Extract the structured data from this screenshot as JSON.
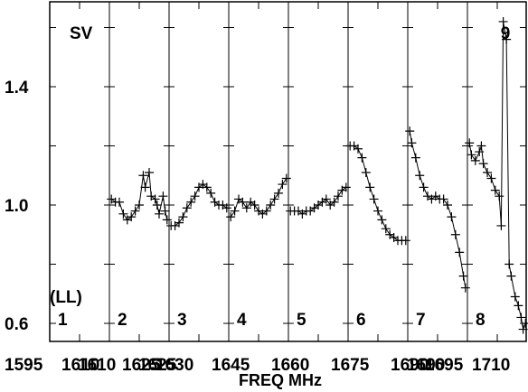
{
  "chart_data": {
    "type": "line",
    "title": "",
    "corner_label": "SV",
    "polarization_label": "(LL)",
    "xlabel": "FREQ MHz",
    "ylabel": "",
    "ylim": [
      0.55,
      1.62
    ],
    "y_ticks": [
      0.6,
      1.0,
      1.4
    ],
    "y_tick_labels": [
      "0.6",
      "1.0",
      "1.4"
    ],
    "x_tick_labels": [
      "1595",
      "1610",
      "1610",
      "1625",
      "1625",
      "1630",
      "1645",
      "1660",
      "1675",
      "1690",
      "1690",
      "1695",
      "1710"
    ],
    "panels": [
      {
        "label": "1",
        "x_start": 1595,
        "x_end": 1610,
        "points": []
      },
      {
        "label": "2",
        "x_start": 1610,
        "x_end": 1625,
        "points": [
          [
            1610.5,
            1.02
          ],
          [
            1611.5,
            1.01
          ],
          [
            1612.5,
            1.01
          ],
          [
            1613.5,
            0.97
          ],
          [
            1614.5,
            0.95
          ],
          [
            1615.5,
            0.96
          ],
          [
            1616.5,
            0.98
          ],
          [
            1617.5,
            1.0
          ],
          [
            1618.5,
            1.1
          ],
          [
            1619,
            1.06
          ],
          [
            1620,
            1.11
          ],
          [
            1620.5,
            1.03
          ],
          [
            1621.5,
            1.02
          ],
          [
            1622,
            1.0
          ],
          [
            1622.5,
            0.97
          ],
          [
            1623.5,
            1.03
          ],
          [
            1624,
            0.98
          ],
          [
            1624.5,
            0.95
          ]
        ]
      },
      {
        "label": "3",
        "x_start": 1630,
        "x_end": 1645,
        "points": [
          [
            1630.5,
            0.93
          ],
          [
            1631.5,
            0.93
          ],
          [
            1632.5,
            0.94
          ],
          [
            1633.5,
            0.96
          ],
          [
            1634.5,
            0.99
          ],
          [
            1635.5,
            1.01
          ],
          [
            1636.5,
            1.03
          ],
          [
            1637.5,
            1.06
          ],
          [
            1638.5,
            1.07
          ],
          [
            1639.5,
            1.06
          ],
          [
            1640.5,
            1.04
          ],
          [
            1641.5,
            1.01
          ],
          [
            1642.5,
            1.0
          ],
          [
            1643.5,
            1.0
          ],
          [
            1644.5,
            0.99
          ]
        ]
      },
      {
        "label": "4",
        "x_start": 1645,
        "x_end": 1660,
        "points": [
          [
            1645.5,
            0.96
          ],
          [
            1646.5,
            0.98
          ],
          [
            1647.5,
            1.02
          ],
          [
            1648.5,
            1.01
          ],
          [
            1649.5,
            0.99
          ],
          [
            1650.5,
            1.01
          ],
          [
            1651.5,
            1.0
          ],
          [
            1652.5,
            0.98
          ],
          [
            1653.5,
            0.97
          ],
          [
            1654.5,
            0.98
          ],
          [
            1655.5,
            1.0
          ],
          [
            1656.5,
            1.02
          ],
          [
            1657.5,
            1.04
          ],
          [
            1658.5,
            1.07
          ],
          [
            1659.5,
            1.09
          ]
        ]
      },
      {
        "label": "5",
        "x_start": 1660,
        "x_end": 1675,
        "points": [
          [
            1660.5,
            0.98
          ],
          [
            1661.5,
            0.98
          ],
          [
            1662.5,
            0.98
          ],
          [
            1663.5,
            0.97
          ],
          [
            1664.5,
            0.98
          ],
          [
            1665.5,
            0.98
          ],
          [
            1666.5,
            0.99
          ],
          [
            1667.5,
            1.0
          ],
          [
            1668.5,
            1.01
          ],
          [
            1669.5,
            1.02
          ],
          [
            1670.5,
            1.0
          ],
          [
            1671.5,
            1.01
          ],
          [
            1672.5,
            1.03
          ],
          [
            1673.5,
            1.05
          ],
          [
            1674.5,
            1.06
          ]
        ]
      },
      {
        "label": "6",
        "x_start": 1675,
        "x_end": 1690,
        "points": [
          [
            1675.5,
            1.2
          ],
          [
            1676.5,
            1.2
          ],
          [
            1677.5,
            1.19
          ],
          [
            1678.5,
            1.16
          ],
          [
            1679.5,
            1.11
          ],
          [
            1680.5,
            1.06
          ],
          [
            1681.5,
            1.02
          ],
          [
            1682.5,
            0.98
          ],
          [
            1683.5,
            0.95
          ],
          [
            1684.5,
            0.92
          ],
          [
            1685.5,
            0.9
          ],
          [
            1686.5,
            0.89
          ],
          [
            1687.5,
            0.88
          ],
          [
            1688.5,
            0.88
          ],
          [
            1689.5,
            0.88
          ]
        ]
      },
      {
        "label": "7",
        "x_start": 1695,
        "x_end": 1710,
        "points": [
          [
            1695.5,
            1.25
          ],
          [
            1696,
            1.21
          ],
          [
            1697,
            1.16
          ],
          [
            1698,
            1.1
          ],
          [
            1699,
            1.06
          ],
          [
            1700,
            1.03
          ],
          [
            1701,
            1.02
          ],
          [
            1702,
            1.03
          ],
          [
            1703,
            1.02
          ],
          [
            1704,
            1.02
          ],
          [
            1705,
            1.0
          ],
          [
            1706,
            0.96
          ],
          [
            1707,
            0.9
          ],
          [
            1708,
            0.84
          ],
          [
            1709,
            0.76
          ],
          [
            1709.5,
            0.72
          ]
        ]
      },
      {
        "label": "8",
        "x_start": 1710,
        "x_end": 1725,
        "points": [
          [
            1710.5,
            1.21
          ],
          [
            1711,
            1.17
          ],
          [
            1712,
            1.15
          ],
          [
            1713,
            1.18
          ],
          [
            1713.5,
            1.2
          ],
          [
            1714,
            1.14
          ],
          [
            1715,
            1.11
          ],
          [
            1716,
            1.09
          ],
          [
            1717,
            1.05
          ],
          [
            1718,
            1.03
          ],
          [
            1718.5,
            0.93
          ],
          [
            1719,
            1.62
          ],
          [
            1719.8,
            1.56
          ],
          [
            1720.5,
            0.8
          ],
          [
            1721,
            0.76
          ],
          [
            1722,
            0.69
          ],
          [
            1722.8,
            0.66
          ],
          [
            1723.5,
            0.62
          ],
          [
            1724,
            0.58
          ],
          [
            1724.6,
            0.6
          ]
        ]
      }
    ],
    "extra_panel_label": "9",
    "grid": false
  }
}
